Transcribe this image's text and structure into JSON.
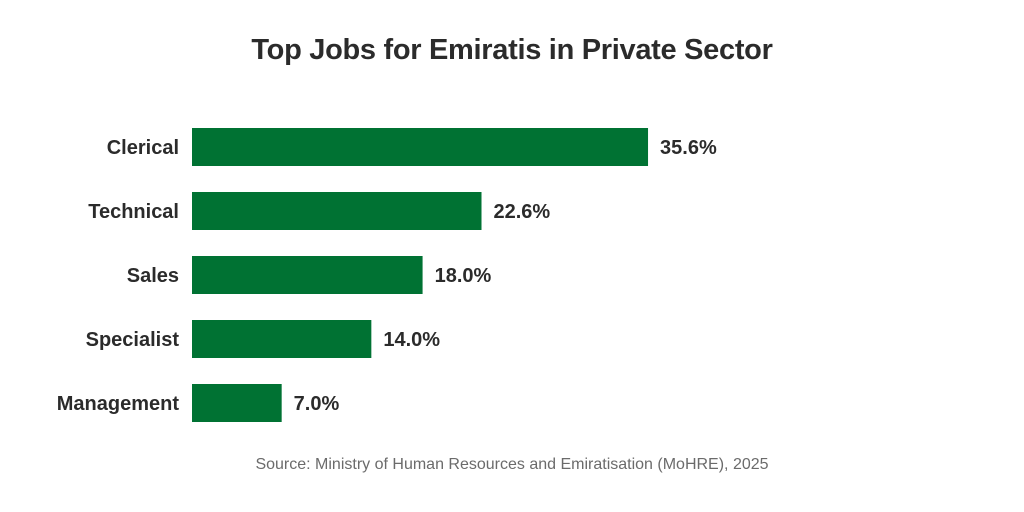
{
  "chart_data": {
    "type": "bar",
    "orientation": "horizontal",
    "title": "Top Jobs for Emiratis in Private Sector",
    "categories": [
      "Clerical",
      "Technical",
      "Sales",
      "Specialist",
      "Management"
    ],
    "values": [
      35.6,
      22.6,
      18.0,
      14.0,
      7.0
    ],
    "value_labels": [
      "35.6%",
      "22.6%",
      "18.0%",
      "14.0%",
      "7.0%"
    ],
    "unit": "%",
    "xlabel": "",
    "ylabel": "",
    "grid": false,
    "legend": "none",
    "bar_color": "#007233",
    "source": "Source: Ministry of Human Resources and Emiratisation (MoHRE), 2025"
  }
}
